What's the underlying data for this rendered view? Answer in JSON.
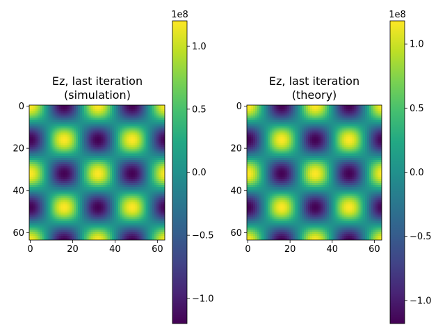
{
  "chart_data": [
    {
      "type": "heatmap",
      "title": "Ez, last iteration\n(simulation)",
      "xlabel": "",
      "ylabel": "",
      "grid": false,
      "x_range": [
        0,
        63
      ],
      "y_range": [
        0,
        63
      ],
      "y_inverted": true,
      "xticks": [
        0,
        20,
        40,
        60
      ],
      "yticks": [
        0,
        20,
        40,
        60
      ],
      "field": {
        "formula": "cos(2*pi*x/32) * cos(2*pi*y/32)",
        "period": 32,
        "amplitude": 120000000
      },
      "colormap": "viridis",
      "colorbar": {
        "range": [
          -120000000,
          120000000
        ],
        "ticks": [
          -1.0,
          -0.5,
          0.0,
          0.5,
          1.0
        ],
        "tick_labels": [
          "−1.0",
          "−0.5",
          "0.0",
          "0.5",
          "1.0"
        ],
        "exponent_label": "1e8"
      }
    },
    {
      "type": "heatmap",
      "title": "Ez, last iteration\n(theory)",
      "xlabel": "",
      "ylabel": "",
      "grid": false,
      "x_range": [
        0,
        63
      ],
      "y_range": [
        0,
        63
      ],
      "y_inverted": true,
      "xticks": [
        0,
        20,
        40,
        60
      ],
      "yticks": [
        0,
        20,
        40,
        60
      ],
      "field": {
        "formula": "cos(2*pi*x/32) * cos(2*pi*y/32)",
        "period": 32,
        "amplitude": 118000000
      },
      "colormap": "viridis",
      "colorbar": {
        "range": [
          -118000000,
          118000000
        ],
        "ticks": [
          -1.0,
          -0.5,
          0.0,
          0.5,
          1.0
        ],
        "tick_labels": [
          "−1.0",
          "−0.5",
          "0.0",
          "0.5",
          "1.0"
        ],
        "exponent_label": "1e8"
      }
    }
  ]
}
